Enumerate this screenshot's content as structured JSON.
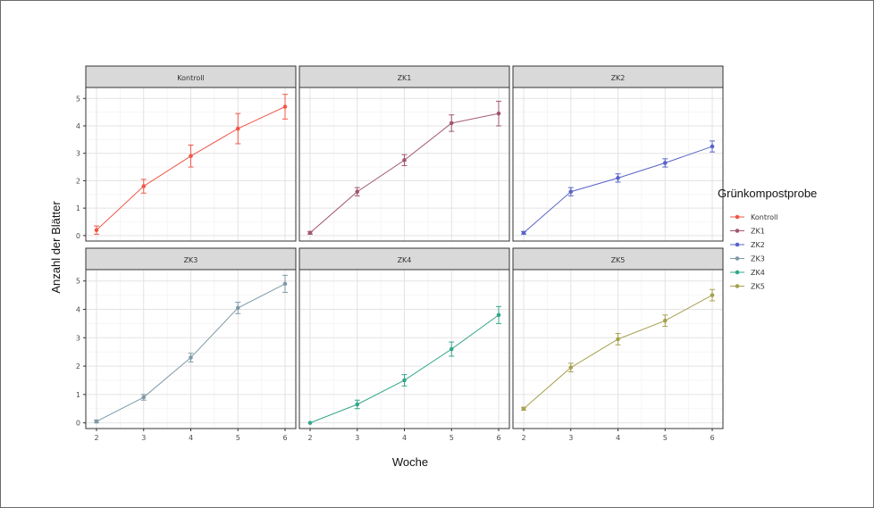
{
  "chart_data": {
    "type": "line",
    "xlabel": "Woche",
    "ylabel": "Anzahl der Blätter",
    "x": [
      2,
      3,
      4,
      5,
      6
    ],
    "x_ticks": [
      "2",
      "3",
      "4",
      "5",
      "6"
    ],
    "ylim": [
      -0.2,
      5.4
    ],
    "y_ticks": [
      "0",
      "1",
      "2",
      "3",
      "4",
      "5"
    ],
    "grid": true,
    "legend": {
      "title": "Grünkompostprobe",
      "position": "right"
    },
    "error_bars": true,
    "series": [
      {
        "name": "Kontroll",
        "color": "#f0584a",
        "values": [
          0.2,
          1.8,
          2.9,
          3.9,
          4.7
        ],
        "errors": [
          0.15,
          0.25,
          0.4,
          0.55,
          0.45
        ]
      },
      {
        "name": "ZK1",
        "color": "#a0566f",
        "values": [
          0.1,
          1.6,
          2.75,
          4.1,
          4.45
        ],
        "errors": [
          0.05,
          0.15,
          0.2,
          0.3,
          0.45
        ]
      },
      {
        "name": "ZK2",
        "color": "#5863c8",
        "values": [
          0.1,
          1.6,
          2.1,
          2.65,
          3.25
        ],
        "errors": [
          0.05,
          0.15,
          0.15,
          0.15,
          0.2
        ]
      },
      {
        "name": "ZK3",
        "color": "#7f9aa6",
        "values": [
          0.05,
          0.9,
          2.3,
          4.05,
          4.9
        ],
        "errors": [
          0.05,
          0.1,
          0.15,
          0.2,
          0.3
        ]
      },
      {
        "name": "ZK4",
        "color": "#33a68c",
        "values": [
          0.0,
          0.65,
          1.5,
          2.6,
          3.8
        ],
        "errors": [
          0.0,
          0.15,
          0.2,
          0.25,
          0.3
        ]
      },
      {
        "name": "ZK5",
        "color": "#a6a04e",
        "values": [
          0.5,
          1.95,
          2.95,
          3.6,
          4.5
        ],
        "errors": [
          0.05,
          0.15,
          0.2,
          0.2,
          0.2
        ]
      }
    ]
  }
}
